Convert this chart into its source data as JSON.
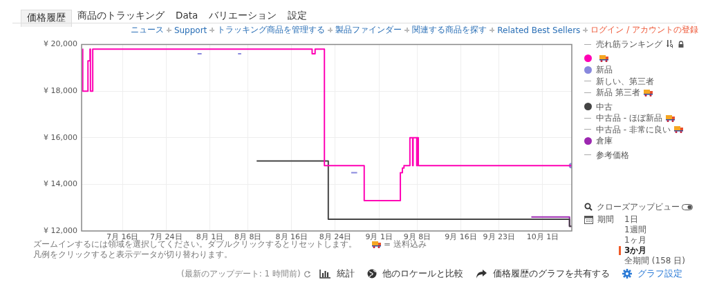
{
  "chart_data": {
    "type": "step",
    "xlim": [
      "--07-08T12:00",
      "--10-06T08:00"
    ],
    "xticks": [
      {
        "value": "--07-16",
        "label": "7月 16日"
      },
      {
        "value": "--07-24",
        "label": "7月 24日"
      },
      {
        "value": "--08-01",
        "label": "8月 1日"
      },
      {
        "value": "--08-08",
        "label": "8月 8日"
      },
      {
        "value": "--08-16",
        "label": "8月 16日"
      },
      {
        "value": "--08-24",
        "label": "8月 24日"
      },
      {
        "value": "--09-01",
        "label": "9月 1日"
      },
      {
        "value": "--09-08",
        "label": "9月 8日"
      },
      {
        "value": "--09-16",
        "label": "9月 16日"
      },
      {
        "value": "--09-23",
        "label": "9月 23日"
      },
      {
        "value": "--10-01",
        "label": "10月 1日"
      }
    ],
    "ylim": [
      12000,
      20000
    ],
    "yticks": [
      {
        "value": 12000,
        "label": "¥ 12,000"
      },
      {
        "value": 14000,
        "label": "¥ 14,000"
      },
      {
        "value": 16000,
        "label": "¥ 16,000"
      },
      {
        "value": 18000,
        "label": "¥ 18,000"
      },
      {
        "value": 20000,
        "label": "¥ 20,000"
      }
    ],
    "grid": true,
    "legend": "right",
    "series": [
      {
        "name": "売れ筋ランキング",
        "color": "#aaaaaa"
      },
      {
        "color": "#ff00b4",
        "x": [
          "--07-08T16:00",
          "--07-08T17:00",
          "--07-09T16:00",
          "--07-10T01:00",
          "--07-10T03:00",
          "--07-10T13:00",
          "--08-19T18:00",
          "--08-20T07:00",
          "--08-22T00:00",
          "--08-29T07:00",
          "--09-04T22:00",
          "--09-05T07:00",
          "--09-05T14:00",
          "--09-06T16:00",
          "--09-07T04:00",
          "--09-07T06:00",
          "--09-07T22:00",
          "--09-08T00:00",
          "--09-08T05:00",
          "--10-06T07:00"
        ],
        "values": [
          19800,
          18000,
          19300,
          19800,
          18000,
          19800,
          19600,
          19800,
          14800,
          13300,
          14500,
          14700,
          14800,
          16000,
          14800,
          16000,
          14800,
          16000,
          14800,
          14800
        ]
      },
      {
        "name": "新品",
        "color": "#8888dd",
        "x": [
          "--07-29T18:00",
          "--07-30T12:00",
          "--07-30T13:00",
          "--08-06T04:00",
          "--08-06T18:00",
          "--08-06T19:00",
          "--08-26T22:00",
          "--08-28T00:00",
          "--08-28T01:00",
          "--10-06T07:00"
        ],
        "values": [
          19600,
          19600,
          null,
          19600,
          19600,
          null,
          14500,
          14500,
          null,
          14800
        ]
      },
      {
        "name": "新しい、第三者",
        "color": "#aaaaaa"
      },
      {
        "name": "新品 第三者",
        "color": "#aaaaaa"
      },
      {
        "name": "中古",
        "color": "#444444",
        "x": [
          "--08-09T14:00",
          "--08-22T17:00",
          "--10-05T22:00",
          "--10-06T07:00"
        ],
        "values": [
          15000,
          12500,
          12200,
          12200
        ]
      },
      {
        "name": "中古品 - ほぼ新品",
        "color": "#aaaaaa"
      },
      {
        "name": "中古品 - 非常に良い",
        "color": "#aaaaaa"
      },
      {
        "name": "倉庫",
        "color": "#9c27b0",
        "x": [
          "--09-28T22:00",
          "--10-05T22:00",
          "--10-06T07:00"
        ],
        "values": [
          12600,
          12200,
          12200
        ]
      },
      {
        "name": "参考価格",
        "color": "#aaaaaa"
      }
    ],
    "annotations": [
      "価格履歴",
      "商品のトラッキング",
      "Data",
      "バリエーション",
      "設定",
      "ニュース",
      "Support",
      "トラッキング商品を管理する",
      "製品ファインダー",
      "関連する商品を探す",
      "Related Best Sellers",
      "ログイン / アカウントの登録",
      "ズームインするには領域を選択してください。ダブルクリックするとリセットします。",
      "= 送料込み",
      "凡例をクリックすると表示データが切り替わります。",
      "クローズアップビュー",
      "期間",
      "1日",
      "1週間",
      "1ヶ月",
      "3か月",
      "全期間 (158 日)",
      "(最新のアップデート: 1 時間前)",
      "統計",
      "他のロケールと比較",
      "価格履歴のグラフを共有する",
      "グラフ設定"
    ]
  }
}
